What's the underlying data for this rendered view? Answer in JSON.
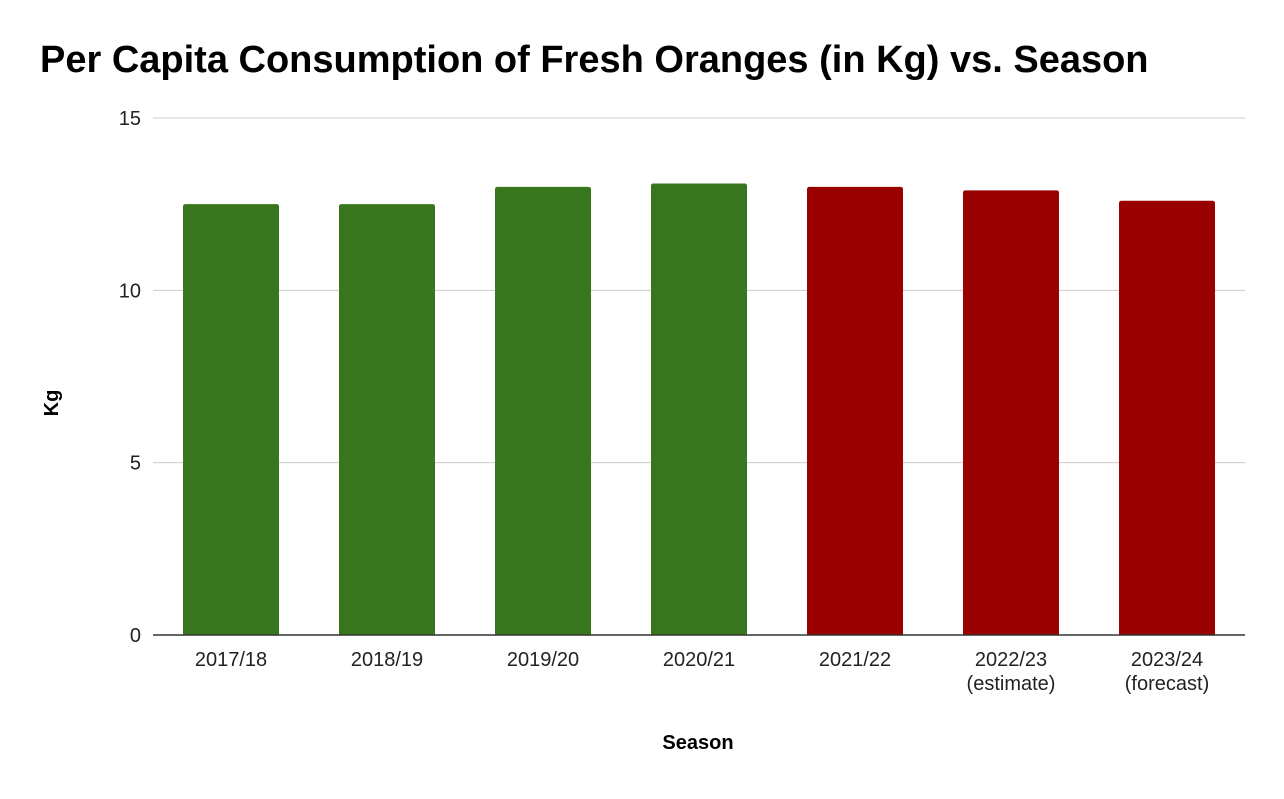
{
  "chart_data": {
    "type": "bar",
    "title": "Per Capita Consumption of Fresh Oranges (in Kg) vs. Season",
    "xlabel": "Season",
    "ylabel": "Kg",
    "categories": [
      [
        "2017/18"
      ],
      [
        "2018/19"
      ],
      [
        "2019/20"
      ],
      [
        "2020/21"
      ],
      [
        "2021/22"
      ],
      [
        "2022/23",
        "(estimate)"
      ],
      [
        "2023/24",
        "(forecast)"
      ]
    ],
    "values": [
      12.5,
      12.5,
      13.0,
      13.1,
      13.0,
      12.9,
      12.6
    ],
    "bar_colors": [
      "#38761d",
      "#38761d",
      "#38761d",
      "#38761d",
      "#990000",
      "#990000",
      "#990000"
    ],
    "ylim": [
      0,
      15
    ],
    "yticks": [
      0,
      5,
      10,
      15
    ],
    "grid": true,
    "gridline_color": "#cccccc",
    "axis_color": "#333333",
    "legend": "none"
  }
}
